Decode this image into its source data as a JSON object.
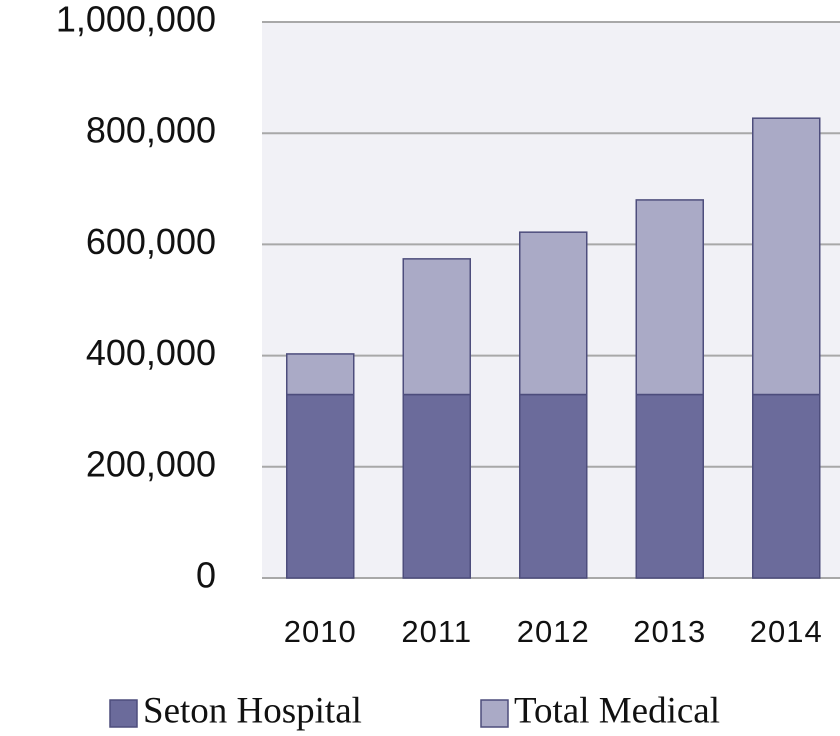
{
  "chart_data": {
    "type": "stacked_bar",
    "categories": [
      "2010",
      "2011",
      "2012",
      "2013",
      "2014"
    ],
    "series": [
      {
        "name": "Seton Hospital",
        "color": "#6b6b9b",
        "values": [
          330000,
          330000,
          330000,
          330000,
          330000
        ]
      },
      {
        "name": "Total Medical",
        "color": "#aaaac6",
        "values": [
          73000,
          244000,
          292000,
          350000,
          497000
        ]
      }
    ],
    "ylim": [
      0,
      1000000
    ],
    "yticks": [
      0,
      {
        "value": 200000,
        "label": "200,000"
      },
      {
        "value": 400000,
        "label": "400,000"
      },
      {
        "value": 600000,
        "label": "600,000"
      },
      {
        "value": 800000,
        "label": "800,000"
      },
      {
        "value": 1000000,
        "label": "1,000,000"
      }
    ],
    "grid": true
  }
}
